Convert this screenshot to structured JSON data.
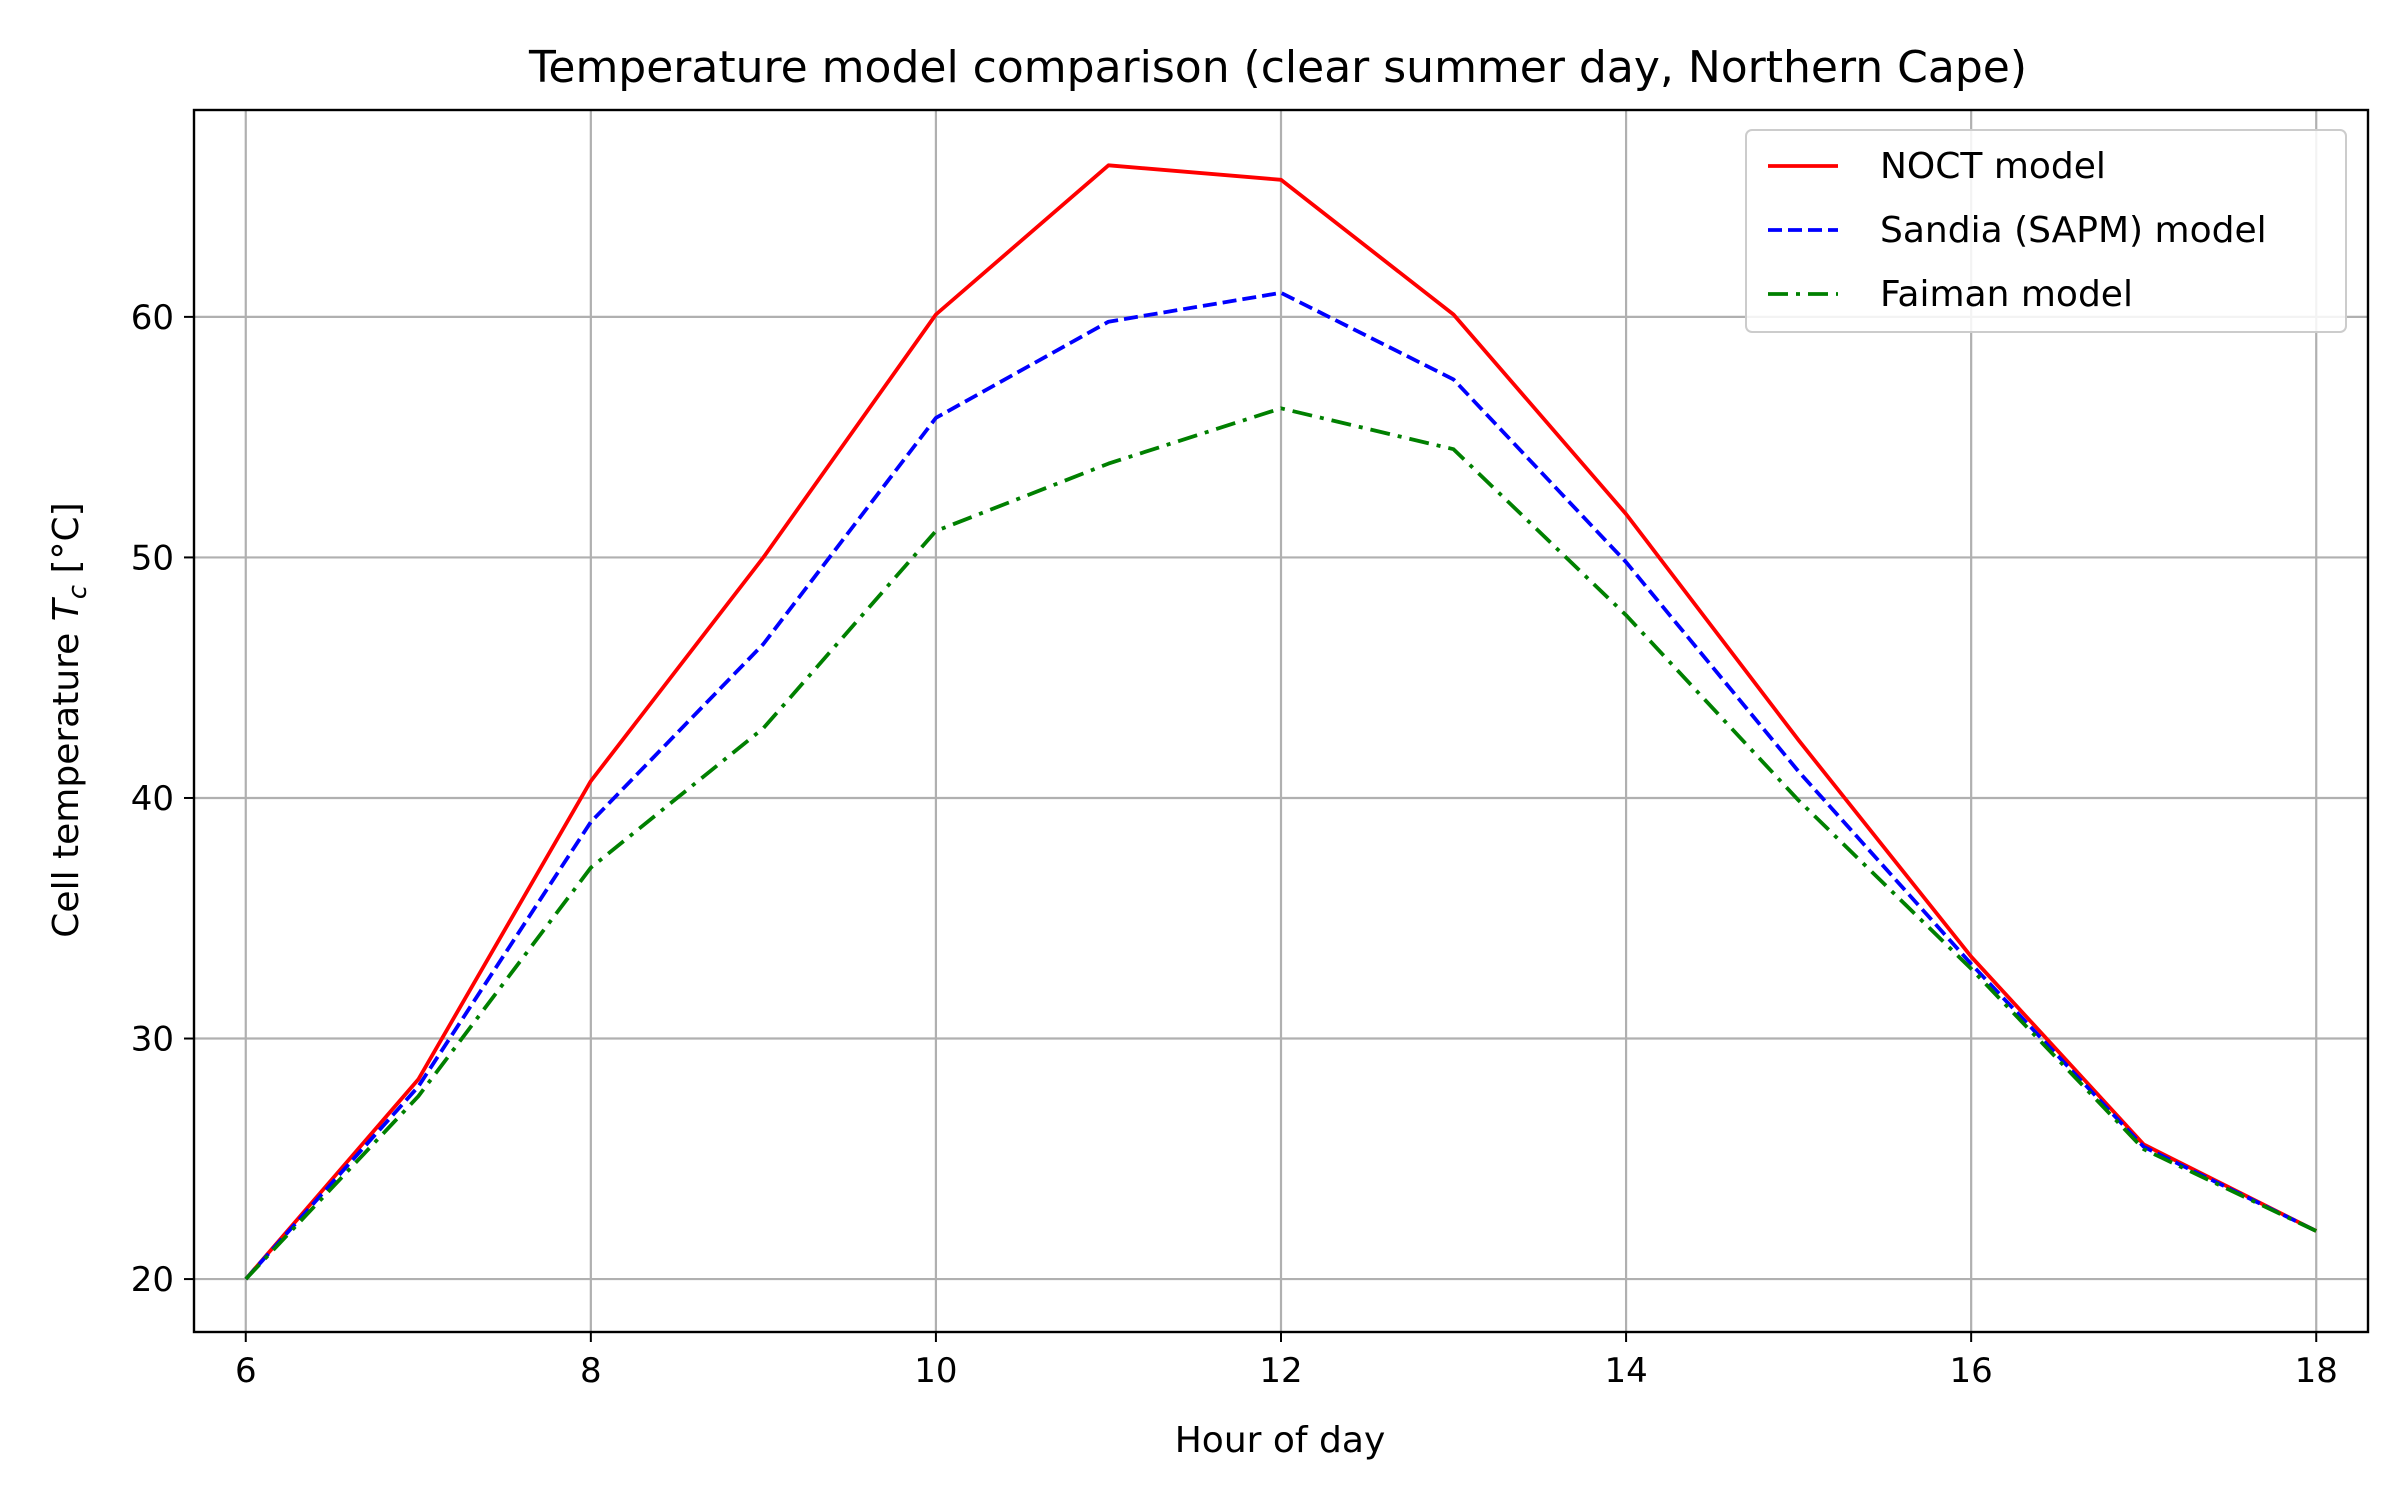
{
  "chart_data": {
    "type": "line",
    "title": "Temperature model comparison (clear summer day, Northern Cape)",
    "xlabel": "Hour of day",
    "ylabel_prefix": "Cell temperature ",
    "ylabel_symbol": "T",
    "ylabel_subscript": "c",
    "ylabel_suffix": " [°C]",
    "x": [
      6,
      7,
      8,
      9,
      10,
      11,
      12,
      13,
      14,
      15,
      16,
      17,
      18
    ],
    "xlim": [
      5.7,
      18.3
    ],
    "ylim": [
      17.8,
      68.6
    ],
    "xticks": [
      6,
      8,
      10,
      12,
      14,
      16,
      18
    ],
    "yticks": [
      20,
      30,
      40,
      50,
      60
    ],
    "grid": true,
    "legend_position": "top-right",
    "series": [
      {
        "name": "NOCT model",
        "color": "#ff0000",
        "line_style": "solid",
        "values": [
          20.0,
          28.3,
          40.7,
          50.0,
          60.1,
          66.3,
          65.7,
          60.1,
          51.8,
          42.4,
          33.4,
          25.6,
          22.0
        ]
      },
      {
        "name": "Sandia (SAPM) model",
        "color": "#0000ff",
        "line_style": "dashed",
        "values": [
          20.0,
          28.0,
          39.0,
          46.4,
          55.8,
          59.8,
          61.0,
          57.4,
          49.8,
          41.1,
          33.1,
          25.5,
          22.0
        ]
      },
      {
        "name": "Faiman model",
        "color": "#008000",
        "line_style": "dashdot",
        "values": [
          20.0,
          27.6,
          37.1,
          42.9,
          51.1,
          53.9,
          56.2,
          54.5,
          47.6,
          39.9,
          32.9,
          25.4,
          22.0
        ]
      }
    ]
  }
}
